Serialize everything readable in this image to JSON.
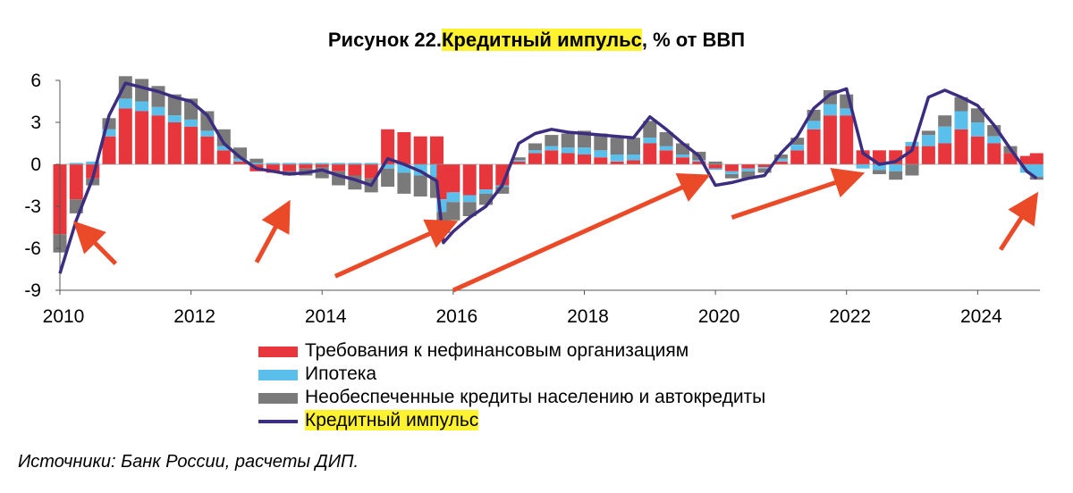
{
  "title": {
    "prefix": "Рисунок 22.",
    "highlight": "Кредитный импульс",
    "suffix": ", % от ВВП"
  },
  "source": "Источники: Банк России, расчеты ДИП.",
  "colors": {
    "corporate": "#e8363d",
    "mortgage": "#5bbfeb",
    "consumer": "#7a7a7a",
    "impulse": "#3d2d80",
    "arrow": "#ea4a28",
    "highlight": "#fff22e"
  },
  "chart_data": {
    "type": "area",
    "yticks": [
      "6",
      "3",
      "0",
      "-3",
      "-6",
      "-9"
    ],
    "ylim": [
      -9,
      6
    ],
    "xticks": [
      "2010",
      "2012",
      "2014",
      "2016",
      "2018",
      "2020",
      "2022",
      "2024"
    ],
    "xlim": [
      2010.0,
      2024.95
    ],
    "grid": false,
    "legend_position": "bottom",
    "x": [
      2010.0,
      2010.25,
      2010.5,
      2010.75,
      2011.0,
      2011.25,
      2011.5,
      2011.75,
      2012.0,
      2012.25,
      2012.5,
      2012.75,
      2013.0,
      2013.25,
      2013.5,
      2013.75,
      2014.0,
      2014.25,
      2014.5,
      2014.75,
      2015.0,
      2015.25,
      2015.5,
      2015.75,
      2015.85,
      2016.0,
      2016.25,
      2016.5,
      2016.75,
      2017.0,
      2017.25,
      2017.5,
      2017.75,
      2018.0,
      2018.25,
      2018.5,
      2018.75,
      2019.0,
      2019.25,
      2019.5,
      2019.75,
      2020.0,
      2020.25,
      2020.5,
      2020.75,
      2021.0,
      2021.25,
      2021.5,
      2021.75,
      2022.0,
      2022.25,
      2022.5,
      2022.75,
      2023.0,
      2023.25,
      2023.5,
      2023.75,
      2024.0,
      2024.25,
      2024.5,
      2024.75,
      2024.9
    ],
    "series": [
      {
        "name": "Требования к нефинансовым организациям",
        "color": "#e8363d",
        "values": [
          -5.0,
          -2.5,
          -1.0,
          2.0,
          4.0,
          3.8,
          3.5,
          3.0,
          2.7,
          2.0,
          1.0,
          0.2,
          -0.5,
          -0.6,
          -0.5,
          -0.3,
          -0.2,
          -0.5,
          -0.8,
          -1.0,
          2.5,
          2.3,
          2.0,
          2.0,
          -2.5,
          -2.0,
          -2.2,
          -1.8,
          -1.5,
          0.2,
          0.8,
          1.0,
          0.8,
          0.7,
          0.5,
          0.2,
          0.3,
          1.5,
          1.0,
          0.5,
          0.2,
          -0.3,
          -0.5,
          -0.3,
          -0.2,
          0.2,
          1.0,
          2.5,
          3.5,
          3.5,
          1.0,
          1.0,
          1.0,
          1.3,
          1.3,
          1.5,
          2.5,
          2.0,
          1.5,
          0.8,
          0.6,
          0.8
        ]
      },
      {
        "name": "Ипотека",
        "color": "#5bbfeb",
        "values": [
          0.0,
          0.1,
          0.2,
          0.5,
          0.7,
          0.7,
          0.6,
          0.5,
          0.5,
          0.4,
          0.3,
          0.2,
          0.1,
          0.1,
          0.1,
          0.1,
          0.1,
          0.1,
          0.1,
          0.1,
          -0.3,
          -0.6,
          -0.8,
          -0.9,
          -0.9,
          -0.7,
          -0.5,
          -0.3,
          -0.1,
          0.1,
          0.2,
          0.3,
          0.4,
          0.5,
          0.5,
          0.5,
          0.4,
          0.4,
          0.3,
          0.2,
          0.1,
          -0.1,
          -0.2,
          -0.2,
          -0.1,
          0.2,
          0.4,
          0.6,
          0.8,
          0.5,
          -0.3,
          -0.4,
          -0.5,
          0.3,
          0.8,
          1.2,
          1.3,
          1.0,
          0.5,
          0.0,
          -0.6,
          -0.9
        ]
      },
      {
        "name": "Необеспеченные кредиты населению и автокредиты",
        "color": "#7a7a7a",
        "values": [
          -1.3,
          -1.0,
          -0.5,
          0.8,
          1.6,
          1.6,
          1.5,
          1.5,
          1.5,
          1.4,
          1.2,
          0.8,
          0.3,
          0.0,
          -0.3,
          -0.5,
          -0.8,
          -1.0,
          -1.0,
          -1.0,
          -1.3,
          -1.5,
          -1.5,
          -1.5,
          -1.5,
          -1.3,
          -1.0,
          -0.8,
          -0.5,
          0.2,
          0.5,
          0.8,
          1.0,
          1.2,
          1.2,
          1.2,
          1.2,
          1.2,
          1.0,
          0.8,
          0.6,
          0.2,
          -0.3,
          -0.5,
          -0.3,
          0.3,
          0.5,
          0.8,
          1.0,
          1.0,
          0.0,
          -0.3,
          -0.6,
          -0.8,
          0.3,
          0.8,
          1.0,
          1.0,
          0.8,
          0.5,
          0.0,
          -0.2
        ]
      },
      {
        "name": "Кредитный импульс",
        "color": "#3d2d80",
        "type": "line",
        "values": [
          -7.8,
          -4.0,
          -1.0,
          3.5,
          5.8,
          5.5,
          5.2,
          4.8,
          4.5,
          3.5,
          1.5,
          0.5,
          -0.3,
          -0.5,
          -0.7,
          -0.6,
          -0.4,
          -0.8,
          -1.1,
          -1.5,
          0.4,
          0.0,
          -0.5,
          -1.2,
          -5.6,
          -4.8,
          -3.8,
          -3.0,
          -1.5,
          1.5,
          2.2,
          2.5,
          2.3,
          2.2,
          2.1,
          2.0,
          1.9,
          3.4,
          2.5,
          1.5,
          0.6,
          -1.5,
          -1.3,
          -1.0,
          -0.8,
          0.8,
          2.0,
          4.0,
          5.0,
          5.4,
          0.8,
          0.0,
          0.2,
          1.0,
          4.8,
          5.3,
          4.8,
          4.2,
          2.8,
          1.1,
          -0.5,
          -1.0
        ]
      }
    ],
    "annotations": {
      "arrows": [
        {
          "from": [
            2010.85,
            -7.1
          ],
          "to": [
            2010.3,
            -4.5
          ]
        },
        {
          "from": [
            2013.0,
            -7.0
          ],
          "to": [
            2013.45,
            -3.1
          ]
        },
        {
          "from": [
            2014.2,
            -8.0
          ],
          "to": [
            2015.95,
            -4.3
          ]
        },
        {
          "from": [
            2016.0,
            -9.0
          ],
          "to": [
            2019.8,
            -1.0
          ]
        },
        {
          "from": [
            2020.25,
            -3.8
          ],
          "to": [
            2022.15,
            -0.8
          ]
        },
        {
          "from": [
            2024.35,
            -6.1
          ],
          "to": [
            2024.85,
            -2.5
          ]
        }
      ]
    }
  },
  "legend": [
    {
      "label": "Требования к нефинансовым организациям",
      "kind": "area",
      "color": "#e8363d",
      "highlight": false
    },
    {
      "label": "Ипотека",
      "kind": "area",
      "color": "#5bbfeb",
      "highlight": false
    },
    {
      "label": "Необеспеченные кредиты населению и автокредиты",
      "kind": "area",
      "color": "#7a7a7a",
      "highlight": false
    },
    {
      "label": "Кредитный импульс",
      "kind": "line",
      "color": "#3d2d80",
      "highlight": true
    }
  ]
}
